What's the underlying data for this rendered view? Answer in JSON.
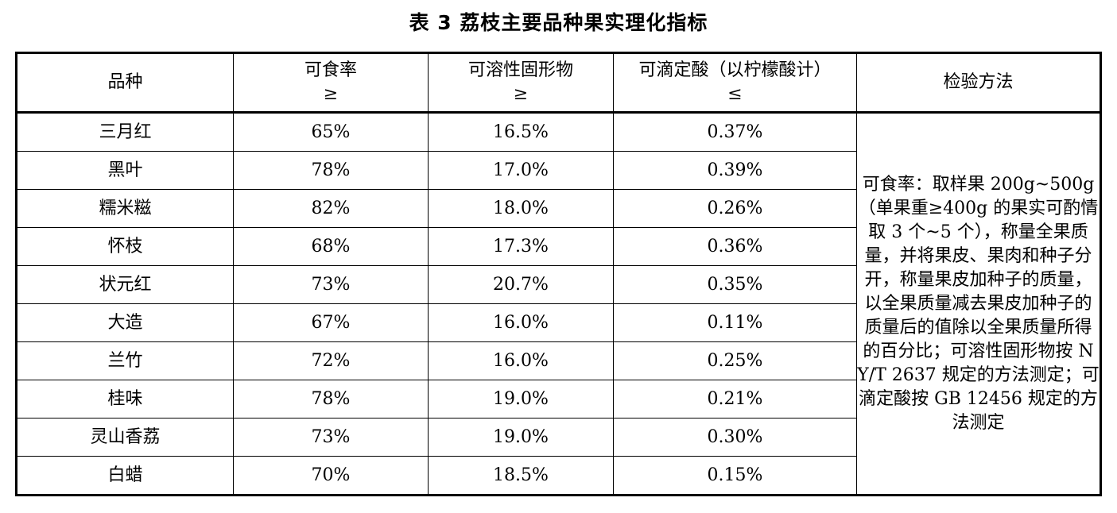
{
  "title": "表 3  荔枝主要品种果实理化指标",
  "header": {
    "variety": "品种",
    "edible_rate": "可食率",
    "edible_rate_symbol": "≥",
    "soluble_solids": "可溶性固形物",
    "soluble_solids_symbol": "≥",
    "titratable_acid": "可滴定酸（以柠檬酸计）",
    "titratable_acid_symbol": "≤",
    "method": "检验方法"
  },
  "rows": [
    {
      "variety": "三月红",
      "edible_rate": "65%",
      "soluble_solids": "16.5%",
      "titratable_acid": "0.37%"
    },
    {
      "variety": "黑叶",
      "edible_rate": "78%",
      "soluble_solids": "17.0%",
      "titratable_acid": "0.39%"
    },
    {
      "variety": "糯米糍",
      "edible_rate": "82%",
      "soluble_solids": "18.0%",
      "titratable_acid": "0.26%"
    },
    {
      "variety": "怀枝",
      "edible_rate": "68%",
      "soluble_solids": "17.3%",
      "titratable_acid": "0.36%"
    },
    {
      "variety": "状元红",
      "edible_rate": "73%",
      "soluble_solids": "20.7%",
      "titratable_acid": "0.35%"
    },
    {
      "variety": "大造",
      "edible_rate": "67%",
      "soluble_solids": "16.0%",
      "titratable_acid": "0.11%"
    },
    {
      "variety": "兰竹",
      "edible_rate": "72%",
      "soluble_solids": "16.0%",
      "titratable_acid": "0.25%"
    },
    {
      "variety": "桂味",
      "edible_rate": "78%",
      "soluble_solids": "19.0%",
      "titratable_acid": "0.21%"
    },
    {
      "variety": "灵山香荔",
      "edible_rate": "73%",
      "soluble_solids": "19.0%",
      "titratable_acid": "0.30%"
    },
    {
      "variety": "白蜡",
      "edible_rate": "70%",
      "soluble_solids": "18.5%",
      "titratable_acid": "0.15%"
    }
  ],
  "method_text": "可食率：取样果 200g~500g（单果重≥400g 的果实可酌情取 3 个~5 个），称量全果质量，并将果皮、果肉和种子分开，称量果皮加种子的质量，以全果质量减去果皮加种子的质量后的值除以全果质量所得的百分比；可溶性固形物按 NY/T 2637 规定的方法测定；可滴定酸按 GB 12456 规定的方法测定"
}
